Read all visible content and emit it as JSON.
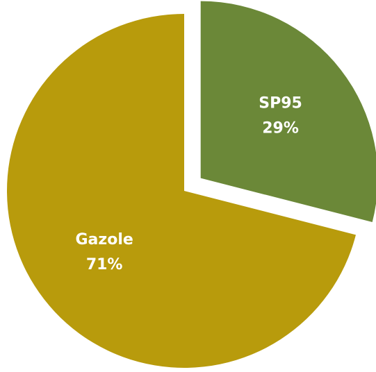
{
  "chart_data": {
    "type": "pie",
    "categories": [
      "SP95",
      "Gazole"
    ],
    "values": [
      29,
      71
    ],
    "value_labels": [
      "29%",
      "71%"
    ],
    "colors": [
      "#6b8838",
      "#b89b0c"
    ],
    "explode": [
      true,
      false
    ]
  }
}
